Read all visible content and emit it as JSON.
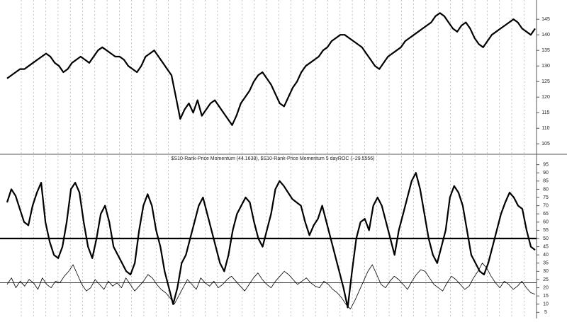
{
  "chart_data": [
    {
      "type": "line",
      "series": [
        {
          "color": "#000000",
          "width": 2.2,
          "values": [
            126,
            127,
            128,
            129,
            129,
            130,
            131,
            132,
            133,
            134,
            133,
            131,
            130,
            128,
            129,
            131,
            132,
            133,
            132,
            131,
            133,
            135,
            136,
            135,
            134,
            133,
            133,
            132,
            130,
            129,
            128,
            130,
            133,
            134,
            135,
            133,
            131,
            129,
            127,
            120,
            113,
            116,
            118,
            115,
            119,
            114,
            116,
            118,
            119,
            117,
            115,
            113,
            111,
            114,
            118,
            120,
            122,
            125,
            127,
            128,
            126,
            124,
            121,
            118,
            117,
            120,
            123,
            125,
            128,
            130,
            131,
            132,
            133,
            135,
            136,
            138,
            139,
            140,
            140,
            139,
            138,
            137,
            136,
            134,
            132,
            130,
            129,
            131,
            133,
            134,
            135,
            136,
            138,
            139,
            140,
            141,
            142,
            143,
            144,
            146,
            147,
            146,
            144,
            142,
            141,
            143,
            144,
            142,
            139,
            137,
            136,
            138,
            140,
            141,
            142,
            143,
            144,
            145,
            144,
            142,
            141,
            140,
            142
          ]
        }
      ],
      "ylim": [
        103,
        148
      ],
      "yticks": [
        105,
        110,
        115,
        120,
        125,
        130,
        135,
        140,
        145
      ],
      "grid": true
    },
    {
      "type": "line",
      "title": "$S10-Rank-Price Momentum (44.1638), $S10-Rank-Price Momentum 5 dayROC (−29.5556)",
      "series": [
        {
          "color": "#000000",
          "width": 2.2,
          "values": [
            72,
            80,
            76,
            68,
            60,
            58,
            70,
            78,
            84,
            60,
            48,
            40,
            38,
            45,
            60,
            80,
            84,
            78,
            60,
            45,
            38,
            50,
            65,
            70,
            60,
            45,
            40,
            35,
            30,
            28,
            35,
            55,
            70,
            77,
            70,
            55,
            45,
            30,
            20,
            10,
            20,
            35,
            40,
            50,
            60,
            70,
            75,
            65,
            55,
            45,
            35,
            30,
            40,
            55,
            65,
            70,
            75,
            72,
            60,
            50,
            45,
            55,
            65,
            80,
            85,
            82,
            78,
            74,
            72,
            70,
            60,
            52,
            58,
            62,
            70,
            60,
            50,
            40,
            30,
            20,
            8,
            30,
            50,
            60,
            62,
            55,
            70,
            75,
            70,
            60,
            50,
            40,
            55,
            65,
            75,
            85,
            90,
            80,
            65,
            50,
            40,
            35,
            45,
            55,
            75,
            82,
            78,
            70,
            55,
            40,
            35,
            30,
            28,
            35,
            45,
            55,
            65,
            72,
            78,
            75,
            70,
            68,
            55,
            45,
            43
          ]
        },
        {
          "color": "#000000",
          "width": 0.8,
          "values": [
            22,
            26,
            20,
            24,
            21,
            25,
            23,
            19,
            26,
            22,
            20,
            24,
            23,
            27,
            30,
            34,
            28,
            22,
            18,
            20,
            25,
            22,
            19,
            24,
            21,
            23,
            20,
            26,
            22,
            18,
            21,
            24,
            28,
            26,
            22,
            19,
            17,
            14,
            10,
            15,
            20,
            25,
            22,
            19,
            26,
            23,
            21,
            24,
            20,
            22,
            25,
            27,
            24,
            21,
            18,
            22,
            26,
            29,
            25,
            22,
            20,
            24,
            27,
            30,
            28,
            25,
            22,
            24,
            26,
            23,
            21,
            20,
            24,
            22,
            19,
            17,
            14,
            10,
            7,
            12,
            18,
            24,
            30,
            34,
            28,
            22,
            20,
            24,
            27,
            25,
            22,
            19,
            24,
            28,
            31,
            30,
            26,
            22,
            20,
            18,
            23,
            27,
            25,
            22,
            19,
            21,
            26,
            30,
            35,
            32,
            27,
            23,
            20,
            24,
            22,
            19,
            21,
            24,
            20,
            17,
            16
          ]
        }
      ],
      "reference_lines": [
        50,
        23
      ],
      "ylim": [
        3,
        97
      ],
      "yticks": [
        5,
        10,
        15,
        20,
        25,
        30,
        35,
        40,
        45,
        50,
        55,
        60,
        65,
        70,
        75,
        80,
        85,
        90,
        95
      ],
      "grid": true
    }
  ]
}
